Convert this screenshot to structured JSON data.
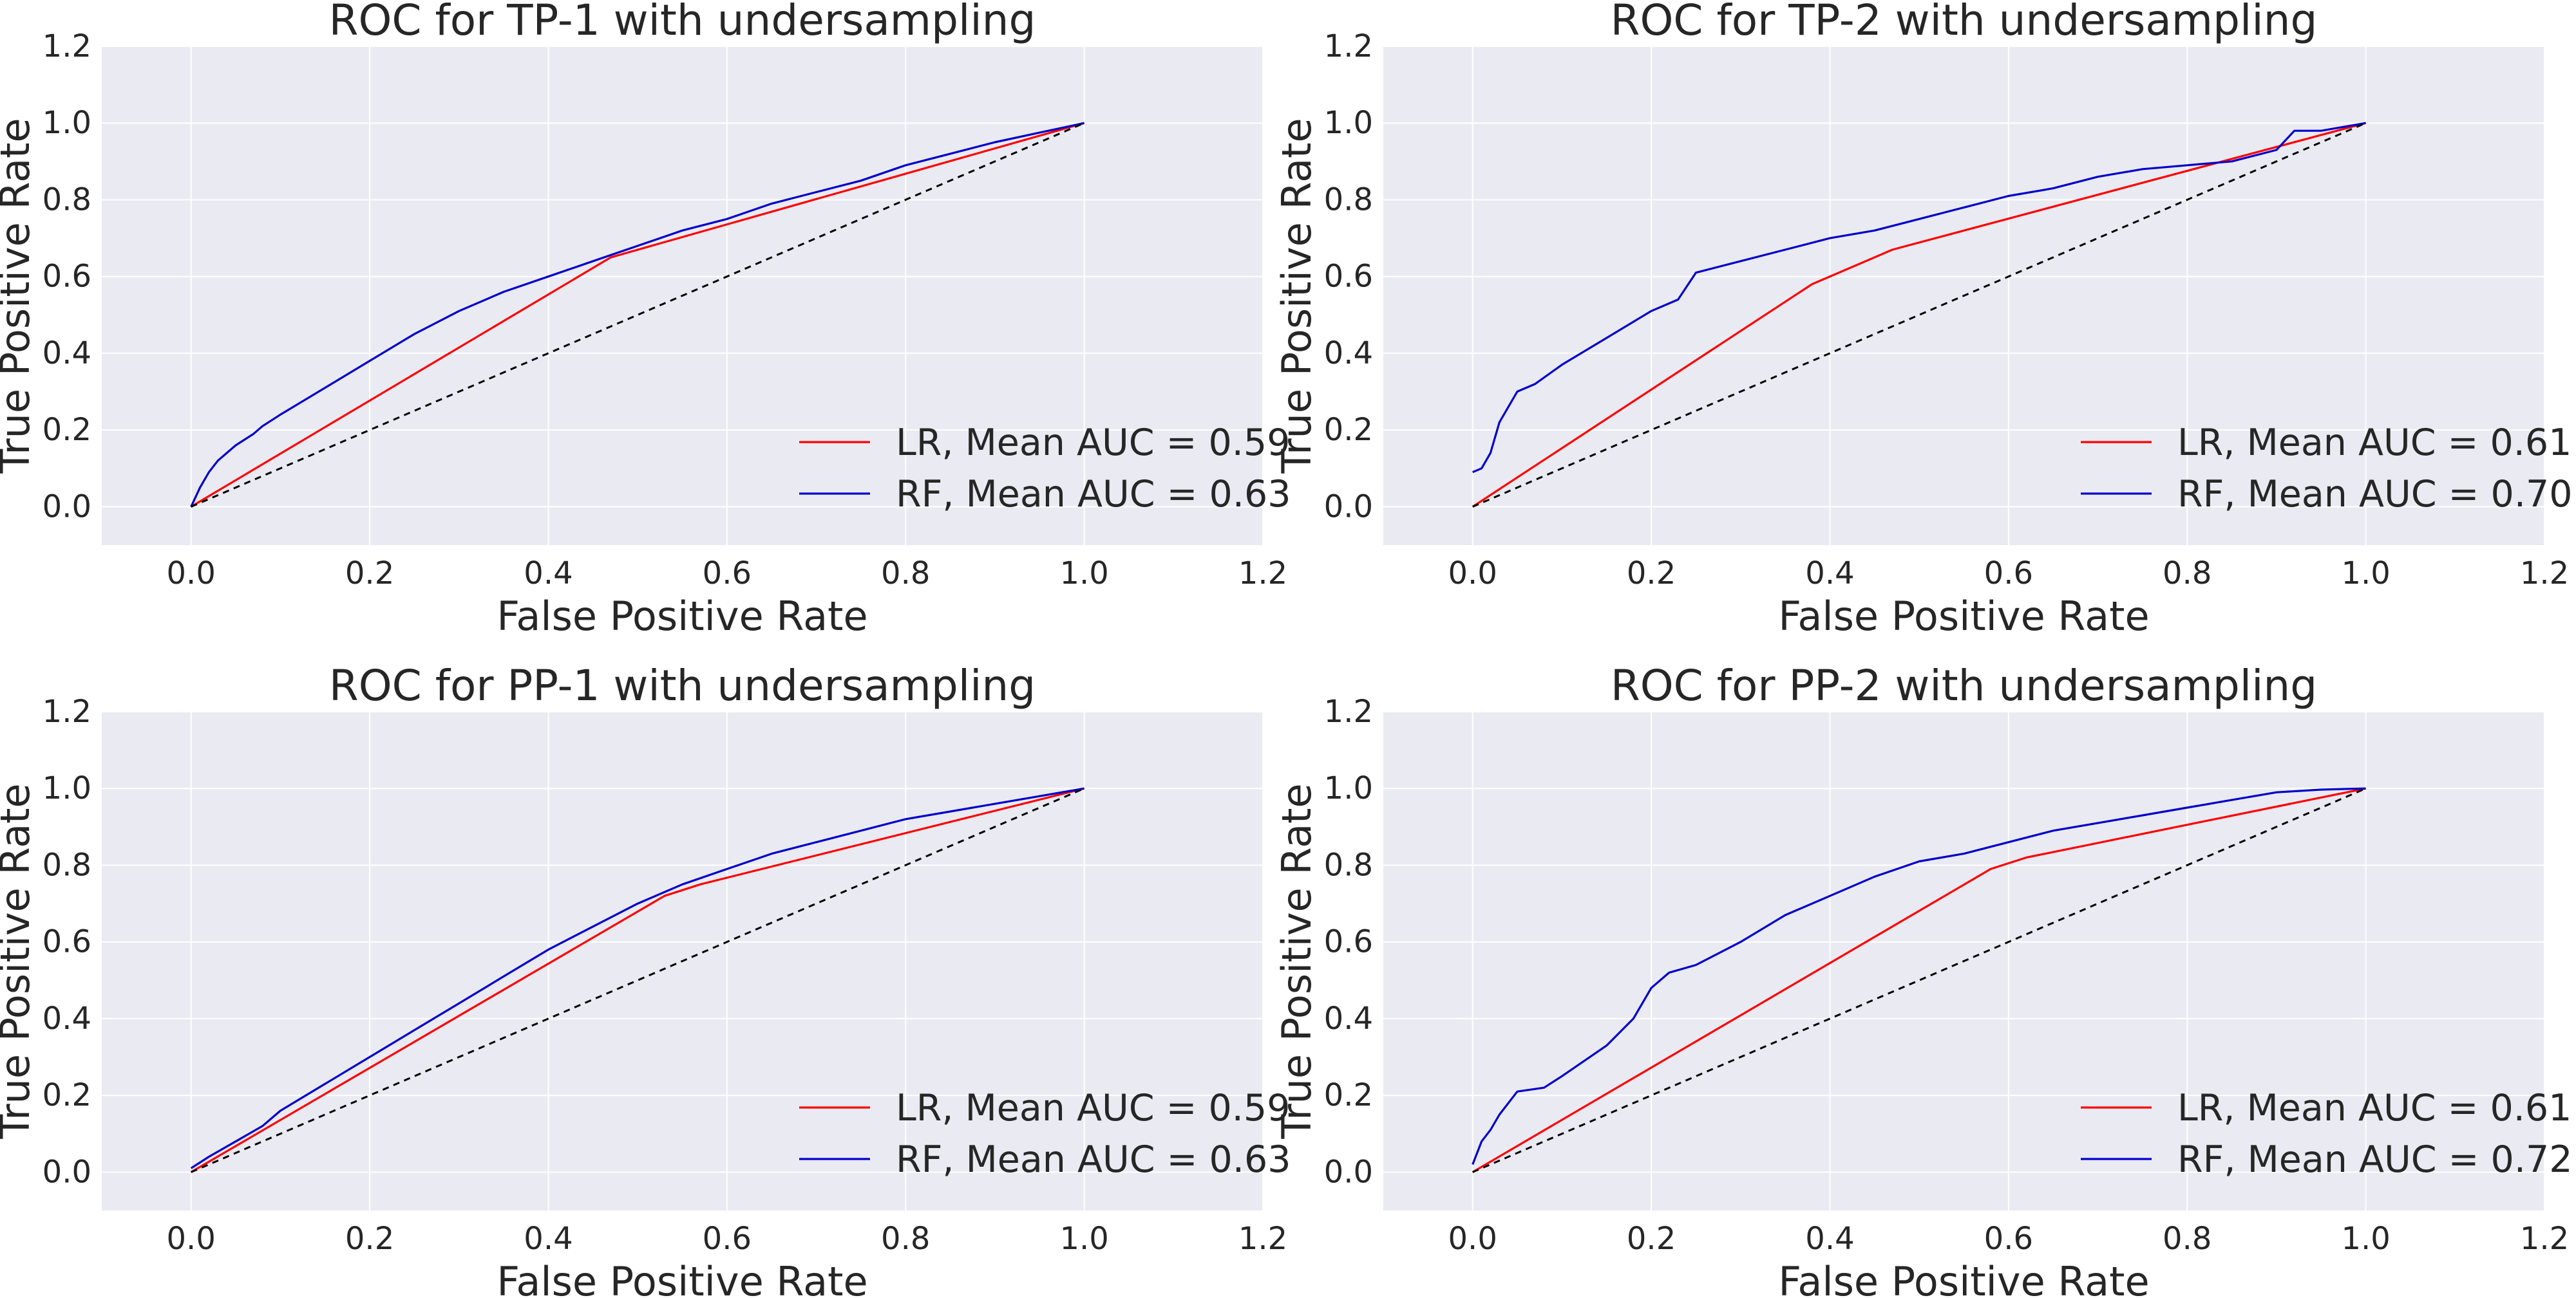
{
  "chart_data": [
    {
      "type": "line",
      "title": "ROC for TP-1 with undersampling",
      "xlabel": "False Positive Rate",
      "ylabel": "True Positive Rate",
      "xlim": [
        -0.1,
        1.2
      ],
      "ylim": [
        -0.1,
        1.2
      ],
      "xticks": [
        "0.0",
        "0.2",
        "0.4",
        "0.6",
        "0.8",
        "1.0",
        "1.2"
      ],
      "yticks": [
        "0.0",
        "0.2",
        "0.4",
        "0.6",
        "0.8",
        "1.0",
        "1.2"
      ],
      "grid": true,
      "legend_position": "lower right",
      "series": [
        {
          "name": "LR, Mean AUC = 0.59",
          "color": "#ff0000",
          "x": [
            0,
            0.47,
            1
          ],
          "y": [
            0,
            0.65,
            1
          ]
        },
        {
          "name": "RF, Mean AUC = 0.63",
          "color": "#0000cc",
          "x": [
            0,
            0.01,
            0.02,
            0.03,
            0.05,
            0.07,
            0.08,
            0.1,
            0.15,
            0.2,
            0.25,
            0.3,
            0.35,
            0.4,
            0.45,
            0.5,
            0.55,
            0.6,
            0.65,
            0.7,
            0.75,
            0.8,
            0.85,
            0.9,
            0.95,
            1
          ],
          "y": [
            0,
            0.05,
            0.09,
            0.12,
            0.16,
            0.19,
            0.21,
            0.24,
            0.31,
            0.38,
            0.45,
            0.51,
            0.56,
            0.6,
            0.64,
            0.68,
            0.72,
            0.75,
            0.79,
            0.82,
            0.85,
            0.89,
            0.92,
            0.95,
            0.975,
            1
          ]
        },
        {
          "color": "#000000",
          "style": "dashed",
          "x": [
            0,
            1
          ],
          "y": [
            0,
            1
          ]
        }
      ]
    },
    {
      "type": "line",
      "title": "ROC for TP-2 with undersampling",
      "xlabel": "False Positive Rate",
      "ylabel": "True Positive Rate",
      "xlim": [
        -0.1,
        1.2
      ],
      "ylim": [
        -0.1,
        1.2
      ],
      "xticks": [
        "0.0",
        "0.2",
        "0.4",
        "0.6",
        "0.8",
        "1.0",
        "1.2"
      ],
      "yticks": [
        "0.0",
        "0.2",
        "0.4",
        "0.6",
        "0.8",
        "1.0",
        "1.2"
      ],
      "grid": true,
      "legend_position": "lower right",
      "series": [
        {
          "name": "LR, Mean AUC = 0.61",
          "color": "#ff0000",
          "x": [
            0,
            0.38,
            0.47,
            1
          ],
          "y": [
            0,
            0.58,
            0.67,
            1
          ]
        },
        {
          "name": "RF, Mean AUC = 0.70",
          "color": "#0000cc",
          "x": [
            0,
            0.01,
            0.02,
            0.03,
            0.05,
            0.07,
            0.1,
            0.15,
            0.2,
            0.23,
            0.25,
            0.3,
            0.35,
            0.4,
            0.45,
            0.5,
            0.55,
            0.6,
            0.65,
            0.7,
            0.75,
            0.8,
            0.85,
            0.9,
            0.92,
            0.95,
            1
          ],
          "y": [
            0.09,
            0.1,
            0.14,
            0.22,
            0.3,
            0.32,
            0.37,
            0.44,
            0.51,
            0.54,
            0.61,
            0.64,
            0.67,
            0.7,
            0.72,
            0.75,
            0.78,
            0.81,
            0.83,
            0.86,
            0.88,
            0.89,
            0.9,
            0.93,
            0.98,
            0.98,
            1
          ]
        },
        {
          "color": "#000000",
          "style": "dashed",
          "x": [
            0,
            1
          ],
          "y": [
            0,
            1
          ]
        }
      ]
    },
    {
      "type": "line",
      "title": "ROC for PP-1 with undersampling",
      "xlabel": "False Positive Rate",
      "ylabel": "True Positive Rate",
      "xlim": [
        -0.1,
        1.2
      ],
      "ylim": [
        -0.1,
        1.2
      ],
      "xticks": [
        "0.0",
        "0.2",
        "0.4",
        "0.6",
        "0.8",
        "1.0",
        "1.2"
      ],
      "yticks": [
        "0.0",
        "0.2",
        "0.4",
        "0.6",
        "0.8",
        "1.0",
        "1.2"
      ],
      "grid": true,
      "legend_position": "lower right",
      "series": [
        {
          "name": "LR, Mean AUC = 0.59",
          "color": "#ff0000",
          "x": [
            0,
            0.53,
            0.57,
            1
          ],
          "y": [
            0,
            0.72,
            0.75,
            1
          ]
        },
        {
          "name": "RF, Mean AUC = 0.63",
          "color": "#0000cc",
          "x": [
            0,
            0.02,
            0.05,
            0.08,
            0.1,
            0.15,
            0.2,
            0.25,
            0.3,
            0.35,
            0.4,
            0.45,
            0.5,
            0.55,
            0.6,
            0.65,
            0.7,
            0.75,
            0.8,
            0.85,
            0.9,
            0.95,
            1
          ],
          "y": [
            0.01,
            0.04,
            0.08,
            0.12,
            0.16,
            0.23,
            0.3,
            0.37,
            0.44,
            0.51,
            0.58,
            0.64,
            0.7,
            0.75,
            0.79,
            0.83,
            0.86,
            0.89,
            0.92,
            0.94,
            0.96,
            0.98,
            1
          ]
        },
        {
          "color": "#000000",
          "style": "dashed",
          "x": [
            0,
            1
          ],
          "y": [
            0,
            1
          ]
        }
      ]
    },
    {
      "type": "line",
      "title": "ROC for PP-2 with undersampling",
      "xlabel": "False Positive Rate",
      "ylabel": "True Positive Rate",
      "xlim": [
        -0.1,
        1.2
      ],
      "ylim": [
        -0.1,
        1.2
      ],
      "xticks": [
        "0.0",
        "0.2",
        "0.4",
        "0.6",
        "0.8",
        "1.0",
        "1.2"
      ],
      "yticks": [
        "0.0",
        "0.2",
        "0.4",
        "0.6",
        "0.8",
        "1.0",
        "1.2"
      ],
      "grid": true,
      "legend_position": "lower right",
      "series": [
        {
          "name": "LR, Mean AUC = 0.61",
          "color": "#ff0000",
          "x": [
            0,
            0.58,
            0.62,
            1
          ],
          "y": [
            0,
            0.79,
            0.82,
            1
          ]
        },
        {
          "name": "RF, Mean AUC = 0.72",
          "color": "#0000cc",
          "x": [
            0,
            0.01,
            0.02,
            0.03,
            0.05,
            0.08,
            0.1,
            0.15,
            0.18,
            0.2,
            0.22,
            0.25,
            0.3,
            0.35,
            0.4,
            0.45,
            0.5,
            0.55,
            0.6,
            0.65,
            0.7,
            0.75,
            0.8,
            0.85,
            0.9,
            0.95,
            1
          ],
          "y": [
            0.02,
            0.08,
            0.11,
            0.15,
            0.21,
            0.22,
            0.25,
            0.33,
            0.4,
            0.48,
            0.52,
            0.54,
            0.6,
            0.67,
            0.72,
            0.77,
            0.81,
            0.83,
            0.86,
            0.89,
            0.91,
            0.93,
            0.95,
            0.97,
            0.99,
            0.997,
            1
          ]
        },
        {
          "color": "#000000",
          "style": "dashed",
          "x": [
            0,
            1
          ],
          "y": [
            0,
            1
          ]
        }
      ]
    }
  ]
}
